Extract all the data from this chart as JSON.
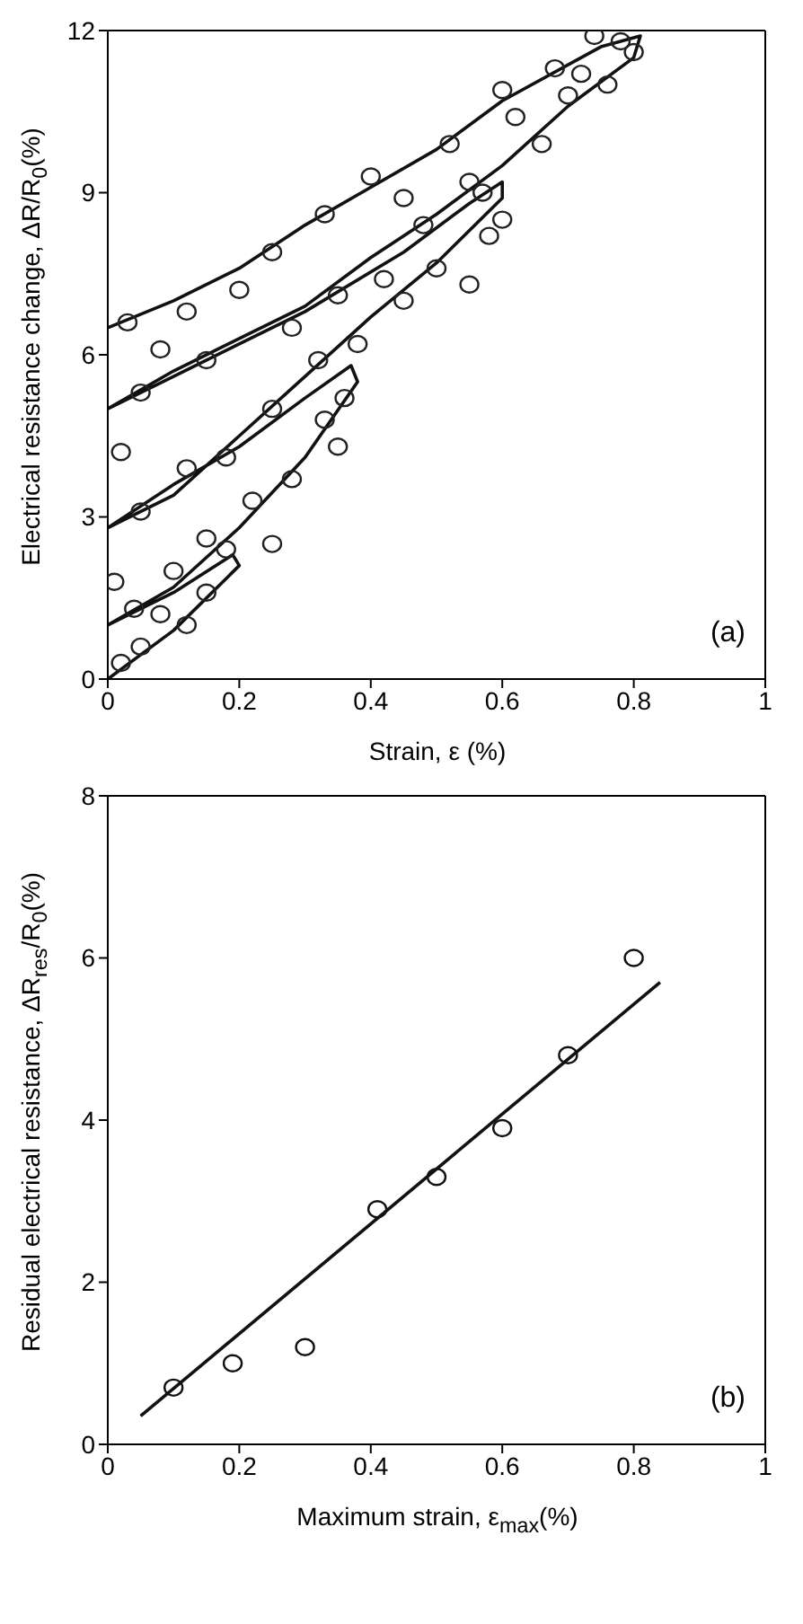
{
  "chart_data": [
    {
      "type": "scatter",
      "xlabel": "Strain, ε (%)",
      "ylabel": "Electrical resistance change, ΔR/R$_{0}$(%)",
      "xlim": [
        0,
        1
      ],
      "xticks": [
        0,
        0.2,
        0.4,
        0.6,
        0.8,
        1
      ],
      "ylim": [
        0,
        12
      ],
      "yticks": [
        0,
        3,
        6,
        9,
        12
      ],
      "annotations": [
        "(a)"
      ],
      "series": [
        {
          "type": "line",
          "color": "#111111",
          "line_style": "solid",
          "x": [
            0,
            0.1,
            0.2,
            0.19,
            0.1,
            0,
            0.1,
            0.2,
            0.3,
            0.38,
            0.37,
            0.3,
            0.2,
            0.1,
            0,
            0.1,
            0.2,
            0.3,
            0.4,
            0.5,
            0.6,
            0.6,
            0.55,
            0.45,
            0.3,
            0.2,
            0.1,
            0,
            0.1,
            0.2,
            0.3,
            0.4,
            0.5,
            0.6,
            0.7,
            0.8,
            0.81,
            0.75,
            0.6,
            0.5,
            0.4,
            0.3,
            0.2,
            0.1,
            0
          ],
          "values": [
            0,
            0.9,
            2.1,
            2.3,
            1.6,
            1.0,
            1.7,
            2.8,
            4.1,
            5.5,
            5.8,
            5.2,
            4.3,
            3.6,
            2.8,
            3.4,
            4.5,
            5.6,
            6.7,
            7.7,
            8.9,
            9.2,
            8.8,
            7.9,
            6.8,
            6.2,
            5.6,
            5.0,
            5.7,
            6.3,
            6.9,
            7.8,
            8.6,
            9.5,
            10.6,
            11.5,
            11.9,
            11.7,
            10.7,
            9.8,
            9.1,
            8.4,
            7.6,
            7.0,
            6.5
          ]
        },
        {
          "marker": "circle",
          "color": "#222222",
          "x": [
            0.02,
            0.05,
            0.08,
            0.12,
            0.15,
            0.18,
            0.04,
            0.1,
            0.15,
            0.22,
            0.25,
            0.28,
            0.33,
            0.36,
            0.35,
            0.05,
            0.12,
            0.18,
            0.25,
            0.32,
            0.38,
            0.45,
            0.5,
            0.55,
            0.58,
            0.6,
            0.57,
            0.48,
            0.42,
            0.35,
            0.28,
            0.15,
            0.05,
            0.08,
            0.12,
            0.2,
            0.25,
            0.33,
            0.4,
            0.45,
            0.52,
            0.55,
            0.62,
            0.66,
            0.7,
            0.72,
            0.76,
            0.78,
            0.8,
            0.74,
            0.68,
            0.6,
            0.03,
            0.02,
            0.01
          ],
          "values": [
            0.3,
            0.6,
            1.2,
            1.0,
            1.6,
            2.4,
            1.3,
            2.0,
            2.6,
            3.3,
            2.5,
            3.7,
            4.8,
            5.2,
            4.3,
            3.1,
            3.9,
            4.1,
            5.0,
            5.9,
            6.2,
            7.0,
            7.6,
            7.3,
            8.2,
            8.5,
            9.0,
            8.4,
            7.4,
            7.1,
            6.5,
            5.9,
            5.3,
            6.1,
            6.8,
            7.2,
            7.9,
            8.6,
            9.3,
            8.9,
            9.9,
            9.2,
            10.4,
            9.9,
            10.8,
            11.2,
            11.0,
            11.8,
            11.6,
            11.9,
            11.3,
            10.9,
            6.6,
            4.2,
            1.8
          ]
        }
      ]
    },
    {
      "type": "scatter",
      "xlabel": "Maximum strain, ε$_{max}$(%)",
      "ylabel": "Residual electrical resistance, ΔR$_{res}$/R$_{0}$(%)",
      "xlim": [
        0,
        1
      ],
      "xticks": [
        0,
        0.2,
        0.4,
        0.6,
        0.8,
        1
      ],
      "ylim": [
        0,
        8
      ],
      "yticks": [
        0,
        2,
        4,
        6,
        8
      ],
      "annotations": [
        "(b)"
      ],
      "series": [
        {
          "marker": "circle",
          "color": "#111111",
          "x": [
            0.1,
            0.19,
            0.3,
            0.41,
            0.5,
            0.6,
            0.7,
            0.8
          ],
          "values": [
            0.7,
            1.0,
            1.2,
            2.9,
            3.3,
            3.9,
            4.8,
            6.0
          ]
        },
        {
          "type": "line",
          "color": "#111111",
          "line_style": "solid",
          "x": [
            0.05,
            0.84
          ],
          "values": [
            0.35,
            5.7
          ]
        }
      ]
    }
  ]
}
